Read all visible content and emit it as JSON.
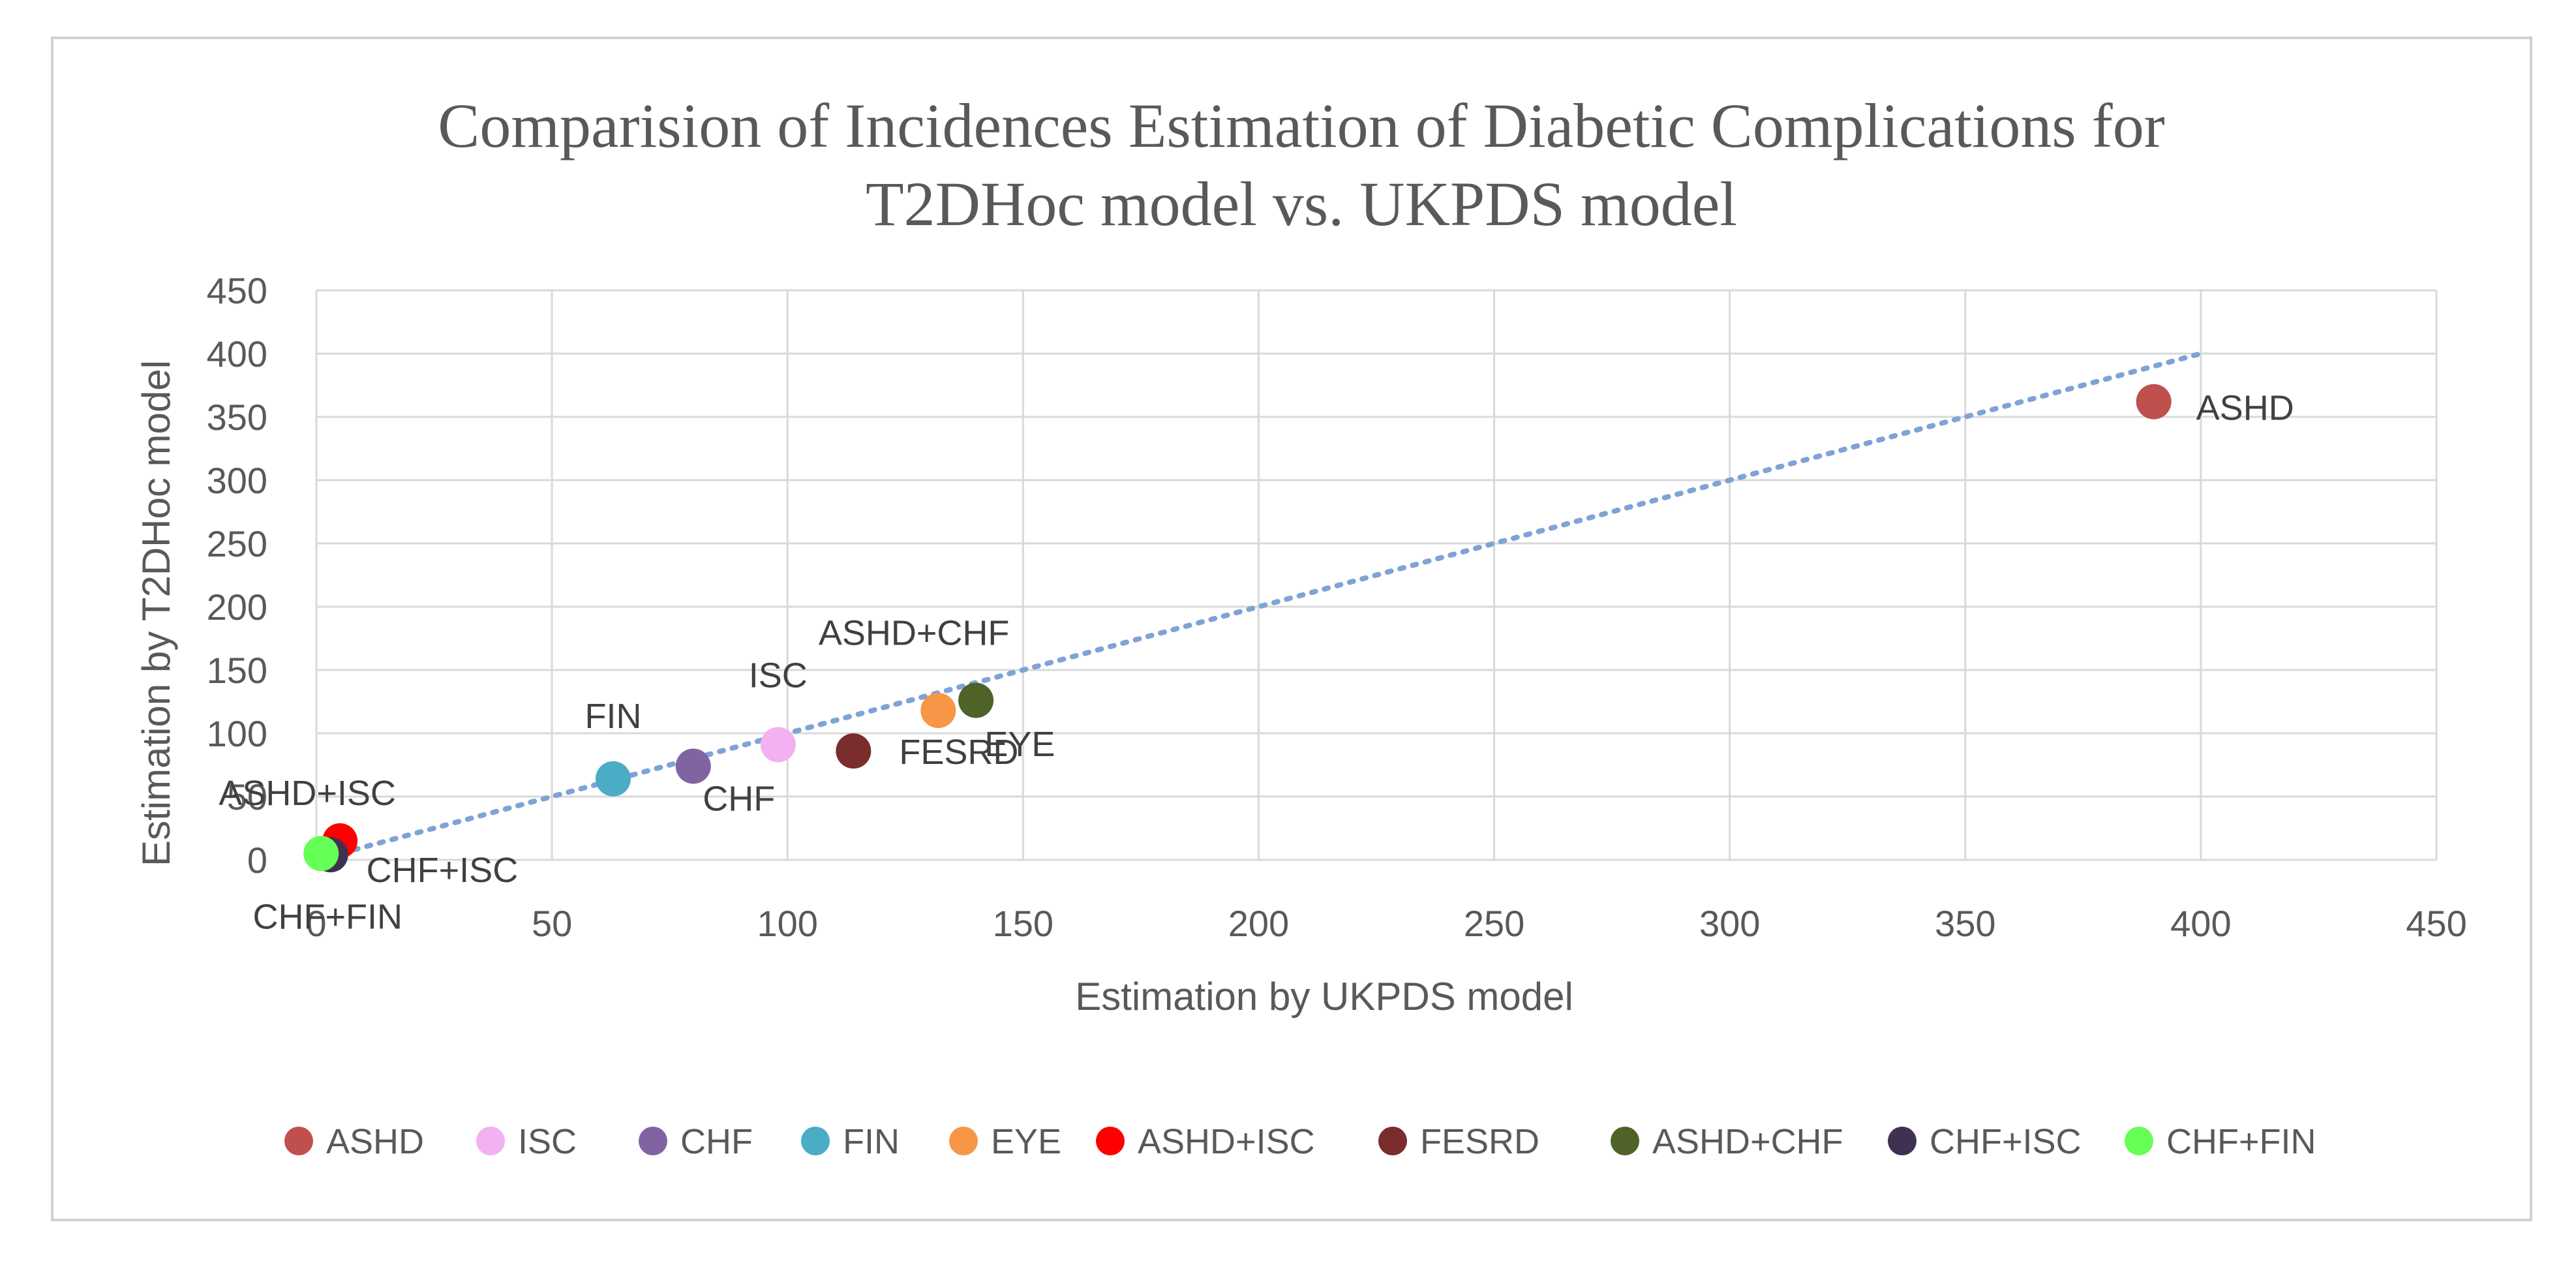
{
  "chart_data": {
    "type": "scatter",
    "title_lines": [
      "Comparision of Incidences Estimation of Diabetic Complications for",
      "T2DHoc model vs. UKPDS model"
    ],
    "xlabel": "Estimation by UKPDS model",
    "ylabel": "Estimation by T2DHoc model",
    "xlim": [
      0,
      450
    ],
    "ylim": [
      0,
      450
    ],
    "xticks": [
      0,
      50,
      100,
      150,
      200,
      250,
      300,
      350,
      400,
      450
    ],
    "yticks": [
      0,
      50,
      100,
      150,
      200,
      250,
      300,
      350,
      400,
      450
    ],
    "grid": true,
    "legend_position": "bottom",
    "trendline": {
      "style": "dotted",
      "color": "#7ea3d6",
      "x": [
        0,
        400
      ],
      "y": [
        0,
        400
      ]
    },
    "series": [
      {
        "name": "ASHD",
        "x": 390,
        "y": 362,
        "color": "#c0504d",
        "label": "ASHD"
      },
      {
        "name": "ISC",
        "x": 98,
        "y": 91,
        "color": "#f3b0f3",
        "label": "ISC"
      },
      {
        "name": "CHF",
        "x": 80,
        "y": 74,
        "color": "#8064a2",
        "label": "CHF"
      },
      {
        "name": "FIN",
        "x": 63,
        "y": 64,
        "color": "#4bacc6",
        "label": "FIN"
      },
      {
        "name": "EYE",
        "x": 132,
        "y": 118,
        "color": "#f79646",
        "label": "EYE"
      },
      {
        "name": "ASHD+ISC",
        "x": 5,
        "y": 15,
        "color": "#ff0000",
        "label": "ASHD+ISC"
      },
      {
        "name": "FESRD",
        "x": 114,
        "y": 86,
        "color": "#7b2c2c",
        "label": "FESRD"
      },
      {
        "name": "ASHD+CHF",
        "x": 140,
        "y": 126,
        "color": "#4f6228",
        "label": "ASHD+CHF"
      },
      {
        "name": "CHF+ISC",
        "x": 3,
        "y": 4,
        "color": "#3f3151",
        "label": "CHF+ISC"
      },
      {
        "name": "CHF+FIN",
        "x": 1,
        "y": 5,
        "color": "#66ff55",
        "label": "CHF+FIN"
      }
    ]
  }
}
